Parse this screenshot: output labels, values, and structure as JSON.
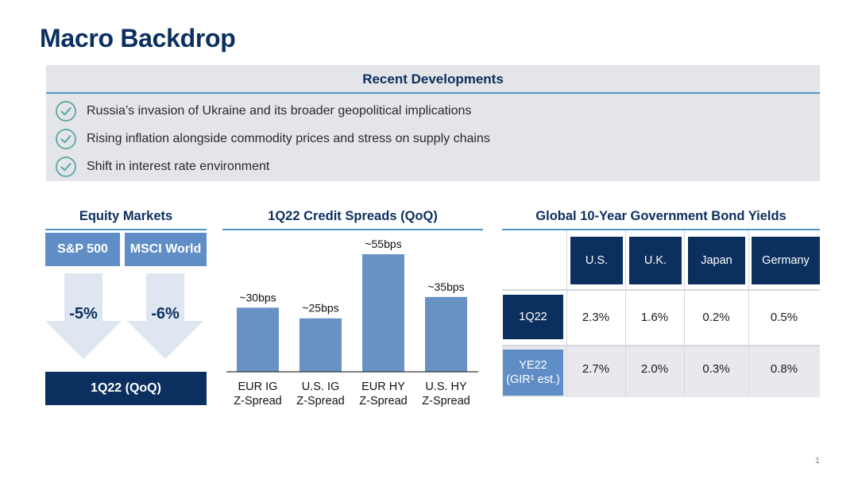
{
  "page": {
    "title": "Macro Backdrop",
    "page_number": "1"
  },
  "recent_developments": {
    "heading": "Recent Developments",
    "items": [
      "Russia’s invasion of Ukraine and its broader geopolitical implications",
      "Rising inflation alongside commodity prices and stress on supply chains",
      "Shift in interest rate environment"
    ]
  },
  "equity_markets": {
    "heading": "Equity Markets",
    "indices": [
      {
        "name": "S&P 500",
        "change": "-5%"
      },
      {
        "name": "MSCI World",
        "change": "-6%"
      }
    ],
    "footer": "1Q22 (QoQ)",
    "colors": {
      "tag": "#5f8ec6",
      "footer": "#0b2f5e",
      "arrow": "#dde6f1"
    }
  },
  "credit_spreads": {
    "heading": "1Q22 Credit Spreads (QoQ)"
  },
  "chart_data": {
    "type": "bar",
    "title": "1Q22 Credit Spreads (QoQ)",
    "categories": [
      [
        "EUR IG",
        "Z-Spread"
      ],
      [
        "U.S. IG",
        "Z-Spread"
      ],
      [
        "EUR HY",
        "Z-Spread"
      ],
      [
        "U.S. HY",
        "Z-Spread"
      ]
    ],
    "values": [
      30,
      25,
      55,
      35
    ],
    "data_labels": [
      "~30bps",
      "~25bps",
      "~55bps",
      "~35bps"
    ],
    "ylim": [
      0,
      55
    ],
    "grid": false,
    "color": "#6892c4"
  },
  "bond_yields": {
    "heading": "Global 10-Year Government Bond Yields",
    "columns": [
      "U.S.",
      "U.K.",
      "Japan",
      "Germany"
    ],
    "rows": [
      {
        "label": [
          "1Q22"
        ],
        "values": [
          "2.3%",
          "1.6%",
          "0.2%",
          "0.5%"
        ]
      },
      {
        "label": [
          "YE22",
          "(GIR¹ est.)"
        ],
        "values": [
          "2.7%",
          "2.0%",
          "0.3%",
          "0.8%"
        ]
      }
    ]
  }
}
